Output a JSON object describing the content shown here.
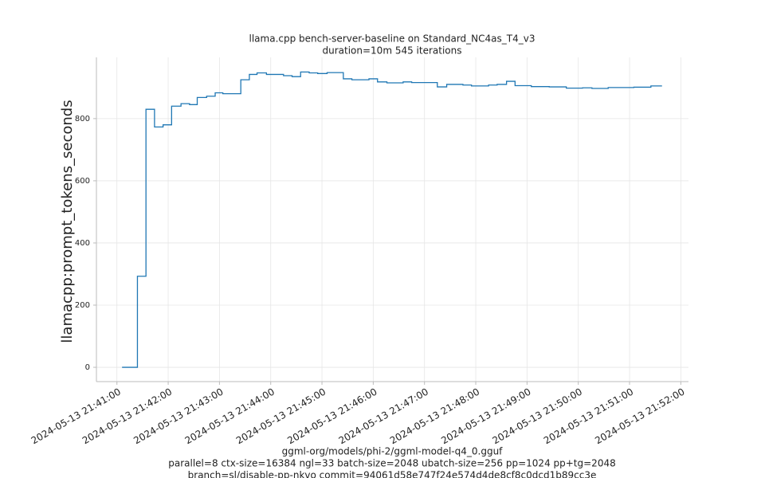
{
  "chart_data": {
    "type": "line",
    "title": [
      "llama.cpp bench-server-baseline on Standard_NC4as_T4_v3",
      "duration=10m 545 iterations"
    ],
    "ylabel": "llamacpp:prompt_tokens_seconds",
    "xlabel": [
      "ggml-org/models/phi-2/ggml-model-q4_0.gguf",
      "parallel=8 ctx-size=16384 ngl=33 batch-size=2048 ubatch-size=256 pp=1024 pp+tg=2048",
      "branch=sl/disable-pp-nkvo commit=94061d58e747f24e574d4de8cf8c0dcd1b89cc3e"
    ],
    "x": [
      "2024-05-13 21:41:06",
      "2024-05-13 21:41:24",
      "2024-05-13 21:41:24",
      "2024-05-13 21:41:34",
      "2024-05-13 21:41:34",
      "2024-05-13 21:41:44",
      "2024-05-13 21:41:44",
      "2024-05-13 21:41:54",
      "2024-05-13 21:41:54",
      "2024-05-13 21:42:04",
      "2024-05-13 21:42:04",
      "2024-05-13 21:42:15",
      "2024-05-13 21:42:15",
      "2024-05-13 21:42:25",
      "2024-05-13 21:42:25",
      "2024-05-13 21:42:34",
      "2024-05-13 21:42:34",
      "2024-05-13 21:42:45",
      "2024-05-13 21:42:45",
      "2024-05-13 21:42:55",
      "2024-05-13 21:42:55",
      "2024-05-13 21:43:04",
      "2024-05-13 21:43:04",
      "2024-05-13 21:43:25",
      "2024-05-13 21:43:25",
      "2024-05-13 21:43:35",
      "2024-05-13 21:43:35",
      "2024-05-13 21:43:44",
      "2024-05-13 21:43:44",
      "2024-05-13 21:43:55",
      "2024-05-13 21:43:55",
      "2024-05-13 21:44:15",
      "2024-05-13 21:44:15",
      "2024-05-13 21:44:25",
      "2024-05-13 21:44:25",
      "2024-05-13 21:44:35",
      "2024-05-13 21:44:35",
      "2024-05-13 21:44:45",
      "2024-05-13 21:44:45",
      "2024-05-13 21:44:55",
      "2024-05-13 21:44:55",
      "2024-05-13 21:45:06",
      "2024-05-13 21:45:06",
      "2024-05-13 21:45:25",
      "2024-05-13 21:45:25",
      "2024-05-13 21:45:35",
      "2024-05-13 21:45:35",
      "2024-05-13 21:45:55",
      "2024-05-13 21:45:55",
      "2024-05-13 21:46:05",
      "2024-05-13 21:46:05",
      "2024-05-13 21:46:16",
      "2024-05-13 21:46:16",
      "2024-05-13 21:46:35",
      "2024-05-13 21:46:35",
      "2024-05-13 21:46:45",
      "2024-05-13 21:46:45",
      "2024-05-13 21:47:15",
      "2024-05-13 21:47:15",
      "2024-05-13 21:47:26",
      "2024-05-13 21:47:26",
      "2024-05-13 21:47:45",
      "2024-05-13 21:47:45",
      "2024-05-13 21:47:55",
      "2024-05-13 21:47:55",
      "2024-05-13 21:48:15",
      "2024-05-13 21:48:15",
      "2024-05-13 21:48:25",
      "2024-05-13 21:48:25",
      "2024-05-13 21:48:36",
      "2024-05-13 21:48:36",
      "2024-05-13 21:48:46",
      "2024-05-13 21:48:46",
      "2024-05-13 21:49:05",
      "2024-05-13 21:49:05",
      "2024-05-13 21:49:26",
      "2024-05-13 21:49:26",
      "2024-05-13 21:49:46",
      "2024-05-13 21:49:46",
      "2024-05-13 21:50:05",
      "2024-05-13 21:50:05",
      "2024-05-13 21:50:16",
      "2024-05-13 21:50:16",
      "2024-05-13 21:50:35",
      "2024-05-13 21:50:35",
      "2024-05-13 21:51:05",
      "2024-05-13 21:51:05",
      "2024-05-13 21:51:25",
      "2024-05-13 21:51:25",
      "2024-05-13 21:51:38"
    ],
    "series": [
      {
        "name": "llamacpp:prompt_tokens_seconds",
        "color": "#1f77b4",
        "values": [
          0,
          0,
          293,
          293,
          830,
          830,
          773,
          773,
          780,
          780,
          840,
          840,
          848,
          848,
          845,
          845,
          868,
          868,
          872,
          872,
          883,
          883,
          880,
          880,
          925,
          925,
          942,
          942,
          947,
          947,
          942,
          942,
          938,
          938,
          935,
          935,
          950,
          950,
          947,
          947,
          945,
          945,
          948,
          948,
          928,
          928,
          925,
          925,
          928,
          928,
          918,
          918,
          915,
          915,
          918,
          918,
          916,
          916,
          902,
          902,
          910,
          910,
          908,
          908,
          905,
          905,
          908,
          908,
          910,
          910,
          920,
          920,
          906,
          906,
          903,
          903,
          902,
          902,
          898,
          898,
          899,
          899,
          897,
          897,
          900,
          900,
          901,
          901,
          905,
          905
        ]
      }
    ],
    "xlim": [
      "2024-05-13 21:40:36",
      "2024-05-13 21:52:09"
    ],
    "xticks": [
      "2024-05-13 21:41:00",
      "2024-05-13 21:42:00",
      "2024-05-13 21:43:00",
      "2024-05-13 21:44:00",
      "2024-05-13 21:45:00",
      "2024-05-13 21:46:00",
      "2024-05-13 21:47:00",
      "2024-05-13 21:48:00",
      "2024-05-13 21:49:00",
      "2024-05-13 21:50:00",
      "2024-05-13 21:51:00",
      "2024-05-13 21:52:00"
    ],
    "ylim": [
      -46,
      997
    ],
    "yticks": [
      0,
      200,
      400,
      600,
      800
    ],
    "grid": true
  }
}
